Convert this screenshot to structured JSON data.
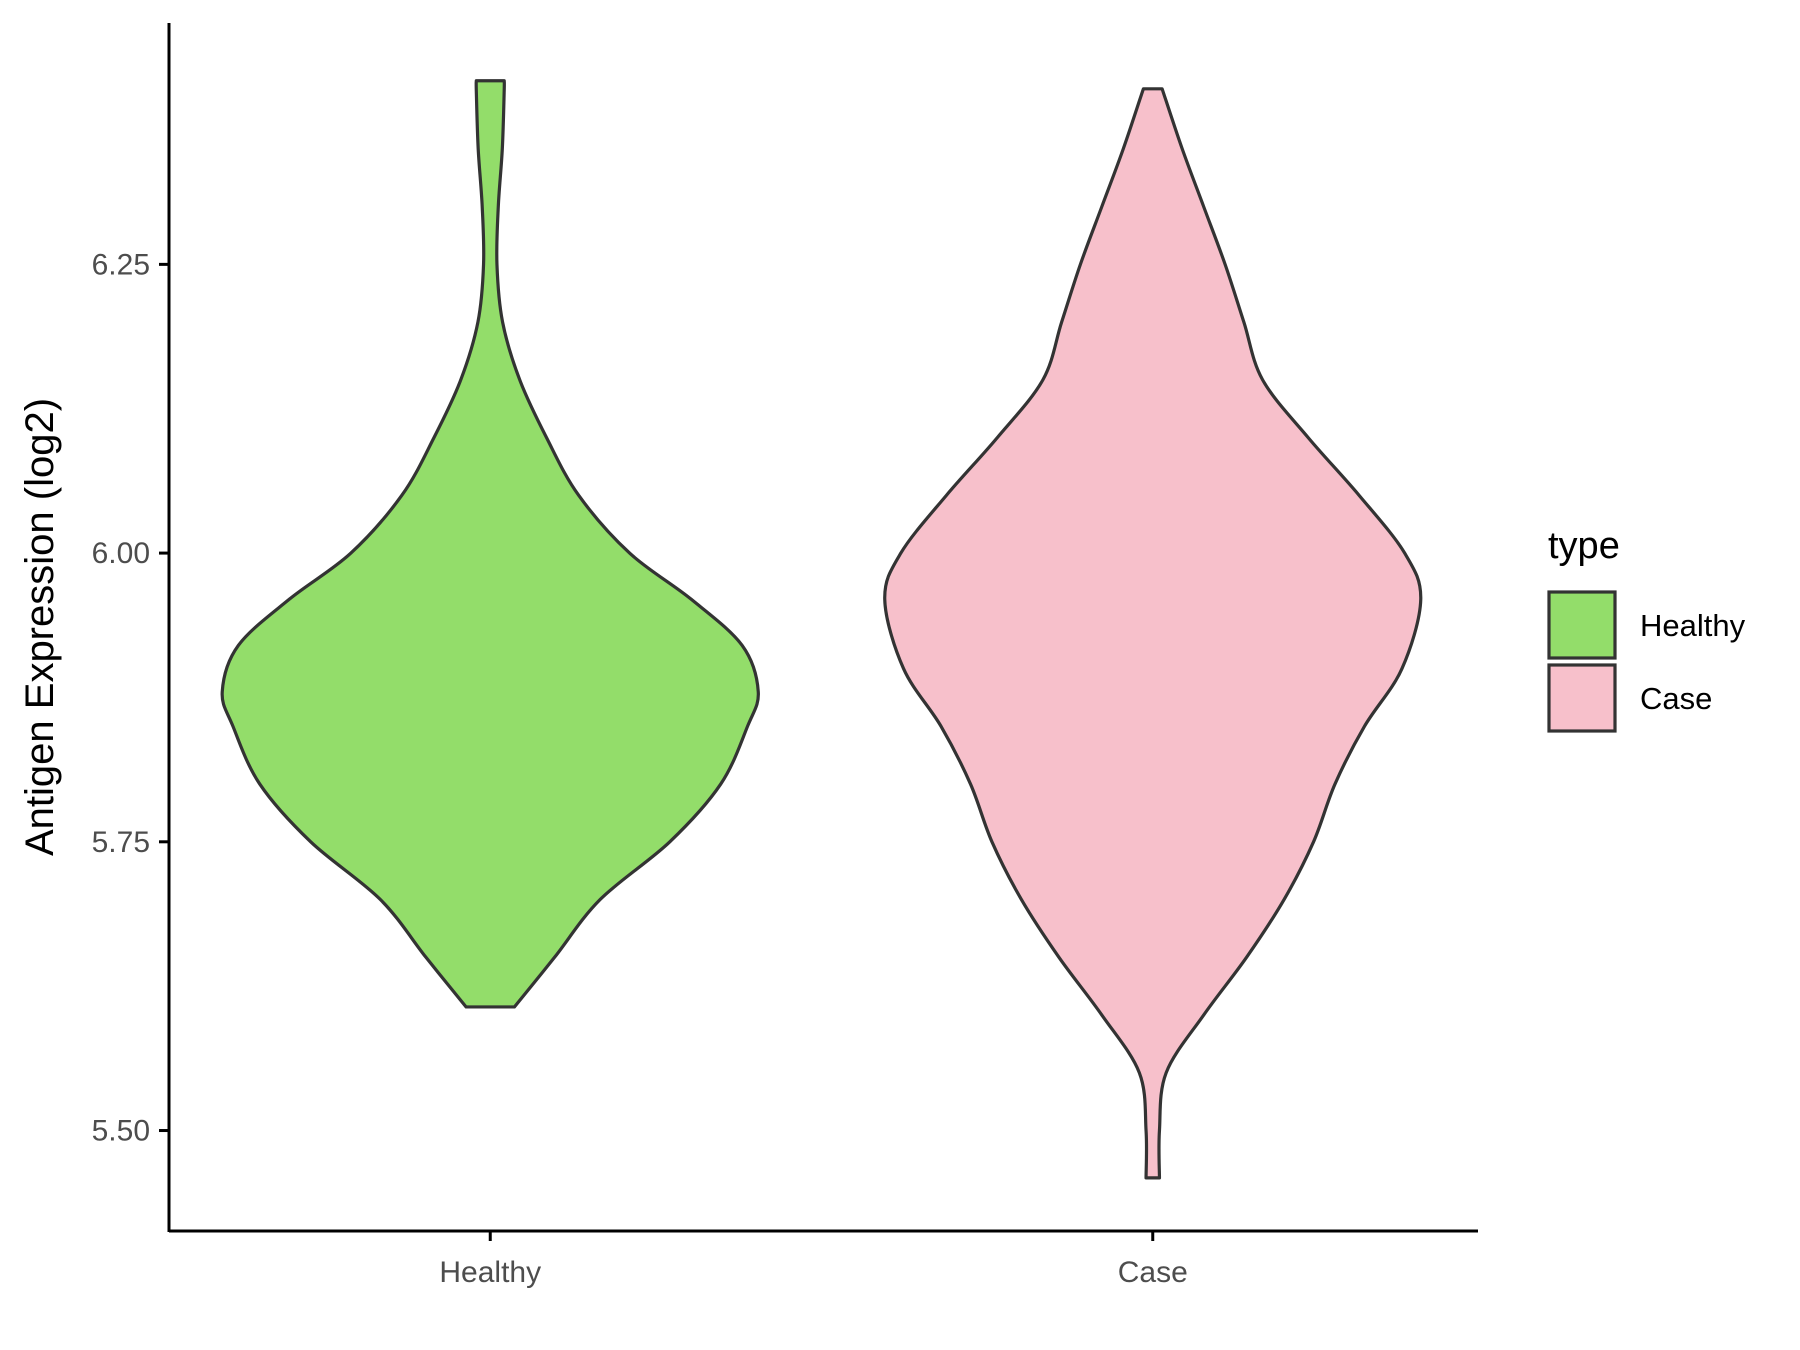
{
  "chart_data": {
    "type": "violin",
    "title": "",
    "xlabel": "",
    "ylabel": "Antigen Expression (log2)",
    "ylim": [
      5.413,
      6.459
    ],
    "yticks": [
      "5.50",
      "5.75",
      "6.00",
      "6.25"
    ],
    "ytick_values": [
      5.5,
      5.75,
      6.0,
      6.25
    ],
    "categories": [
      "Healthy",
      "Case"
    ],
    "legend": {
      "title": "type",
      "position": "right",
      "items": [
        {
          "label": "Healthy",
          "color": "#93dd6a"
        },
        {
          "label": "Case",
          "color": "#f7c0cb"
        }
      ]
    },
    "series": [
      {
        "name": "Healthy",
        "color": "#93dd6a",
        "min": 5.607,
        "max": 6.409,
        "profile": [
          [
            5.607,
            0.09
          ],
          [
            5.65,
            0.24
          ],
          [
            5.7,
            0.41
          ],
          [
            5.75,
            0.67
          ],
          [
            5.8,
            0.86
          ],
          [
            5.85,
            0.96
          ],
          [
            5.88,
            1.0
          ],
          [
            5.92,
            0.94
          ],
          [
            5.96,
            0.75
          ],
          [
            6.0,
            0.52
          ],
          [
            6.05,
            0.33
          ],
          [
            6.1,
            0.21
          ],
          [
            6.15,
            0.11
          ],
          [
            6.2,
            0.046
          ],
          [
            6.25,
            0.025
          ],
          [
            6.3,
            0.03
          ],
          [
            6.35,
            0.045
          ],
          [
            6.4,
            0.052
          ],
          [
            6.409,
            0.052
          ]
        ]
      },
      {
        "name": "Case",
        "color": "#f7c0cb",
        "min": 5.459,
        "max": 6.402,
        "profile": [
          [
            5.459,
            0.025
          ],
          [
            5.5,
            0.025
          ],
          [
            5.55,
            0.05
          ],
          [
            5.6,
            0.19
          ],
          [
            5.65,
            0.35
          ],
          [
            5.7,
            0.49
          ],
          [
            5.75,
            0.6
          ],
          [
            5.8,
            0.68
          ],
          [
            5.85,
            0.79
          ],
          [
            5.9,
            0.93
          ],
          [
            5.96,
            1.0
          ],
          [
            6.0,
            0.94
          ],
          [
            6.05,
            0.77
          ],
          [
            6.1,
            0.58
          ],
          [
            6.15,
            0.41
          ],
          [
            6.2,
            0.34
          ],
          [
            6.25,
            0.27
          ],
          [
            6.3,
            0.19
          ],
          [
            6.35,
            0.11
          ],
          [
            6.402,
            0.035
          ]
        ]
      }
    ]
  }
}
